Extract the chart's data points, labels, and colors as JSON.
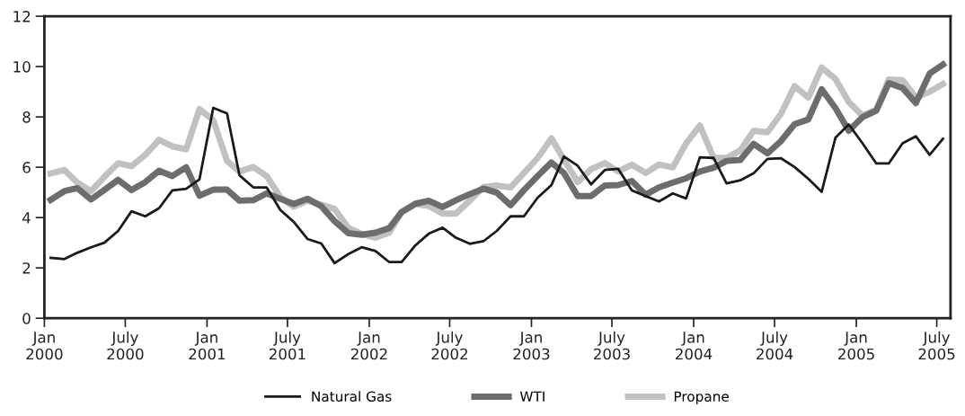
{
  "chart_data": {
    "type": "line",
    "x": [
      "2000-01-15",
      "2000-02-15",
      "2000-03-15",
      "2000-04-15",
      "2000-05-15",
      "2000-06-15",
      "2000-07-15",
      "2000-08-15",
      "2000-09-15",
      "2000-10-15",
      "2000-11-15",
      "2000-12-15",
      "2001-01-15",
      "2001-02-15",
      "2001-03-15",
      "2001-04-15",
      "2001-05-15",
      "2001-06-15",
      "2001-07-15",
      "2001-08-15",
      "2001-09-15",
      "2001-10-15",
      "2001-11-15",
      "2001-12-15",
      "2002-01-15",
      "2002-02-15",
      "2002-03-15",
      "2002-04-15",
      "2002-05-15",
      "2002-06-15",
      "2002-07-15",
      "2002-08-15",
      "2002-09-15",
      "2002-10-15",
      "2002-11-15",
      "2002-12-15",
      "2003-01-15",
      "2003-02-15",
      "2003-03-15",
      "2003-04-15",
      "2003-05-15",
      "2003-06-15",
      "2003-07-15",
      "2003-08-15",
      "2003-09-15",
      "2003-10-15",
      "2003-11-15",
      "2003-12-15",
      "2004-01-15",
      "2004-02-15",
      "2004-03-15",
      "2004-04-15",
      "2004-05-15",
      "2004-06-15",
      "2004-07-15",
      "2004-08-15",
      "2004-09-15",
      "2004-10-15",
      "2004-11-15",
      "2004-12-15",
      "2005-01-15",
      "2005-02-15",
      "2005-03-15",
      "2005-04-15",
      "2005-05-15",
      "2005-06-15",
      "2005-07-15"
    ],
    "series": [
      {
        "name": "Natural Gas",
        "color": "#1a1a1a",
        "values": [
          2.4,
          2.35,
          2.6,
          2.82,
          3.0,
          3.47,
          4.25,
          4.05,
          4.37,
          5.08,
          5.14,
          5.52,
          8.36,
          8.14,
          5.68,
          5.2,
          5.2,
          4.3,
          3.83,
          3.15,
          2.97,
          2.19,
          2.55,
          2.82,
          2.67,
          2.23,
          2.23,
          2.9,
          3.36,
          3.6,
          3.2,
          2.96,
          3.06,
          3.47,
          4.05,
          4.05,
          4.79,
          5.29,
          6.43,
          6.06,
          5.32,
          5.89,
          5.94,
          5.08,
          4.85,
          4.64,
          4.96,
          4.76,
          6.39,
          6.37,
          5.36,
          5.48,
          5.76,
          6.33,
          6.36,
          6.01,
          5.54,
          5.02,
          7.17,
          7.7,
          6.95,
          6.15,
          6.15,
          6.95,
          7.23,
          6.49,
          7.13
        ]
      },
      {
        "name": "WTI",
        "color": "#6d6d6f",
        "values": [
          4.7,
          5.05,
          5.17,
          4.72,
          5.1,
          5.5,
          5.09,
          5.41,
          5.86,
          5.65,
          6.0,
          4.87,
          5.11,
          5.11,
          4.67,
          4.69,
          4.96,
          4.75,
          4.54,
          4.75,
          4.45,
          3.86,
          3.38,
          3.32,
          3.4,
          3.58,
          4.22,
          4.55,
          4.67,
          4.42,
          4.69,
          4.93,
          5.15,
          4.99,
          4.49,
          5.09,
          5.65,
          6.19,
          5.77,
          4.85,
          4.85,
          5.27,
          5.29,
          5.45,
          4.91,
          5.2,
          5.39,
          5.56,
          5.83,
          5.98,
          6.25,
          6.29,
          6.93,
          6.55,
          7.03,
          7.71,
          7.9,
          9.1,
          8.35,
          7.45,
          7.99,
          8.25,
          9.34,
          9.15,
          8.55,
          9.72,
          10.08
        ]
      },
      {
        "name": "Propane",
        "color": "#c0c1c3",
        "values": [
          5.75,
          5.89,
          5.39,
          5.05,
          5.62,
          6.16,
          6.04,
          6.49,
          7.09,
          6.83,
          6.71,
          8.31,
          7.87,
          6.25,
          5.83,
          6.01,
          5.65,
          4.81,
          4.43,
          4.67,
          4.51,
          4.34,
          3.59,
          3.35,
          3.2,
          3.4,
          4.22,
          4.54,
          4.46,
          4.16,
          4.16,
          4.67,
          5.21,
          5.27,
          5.2,
          5.77,
          6.37,
          7.15,
          6.31,
          5.41,
          5.92,
          6.17,
          5.83,
          6.1,
          5.77,
          6.11,
          5.99,
          6.95,
          7.66,
          6.37,
          6.37,
          6.67,
          7.45,
          7.39,
          8.11,
          9.22,
          8.77,
          9.96,
          9.51,
          8.59,
          8.05,
          8.29,
          9.49,
          9.46,
          8.77,
          9.0,
          9.31
        ]
      }
    ],
    "xlim": [
      "2000-01-01",
      "2005-08-01"
    ],
    "xticks": [
      {
        "value": "2000-01-01",
        "label": "Jan\n2000"
      },
      {
        "value": "2000-07-01",
        "label": "July\n2000"
      },
      {
        "value": "2001-01-01",
        "label": "Jan\n2001"
      },
      {
        "value": "2001-07-01",
        "label": "July\n2001"
      },
      {
        "value": "2002-01-01",
        "label": "Jan\n2002"
      },
      {
        "value": "2002-07-01",
        "label": "July\n2002"
      },
      {
        "value": "2003-01-01",
        "label": "Jan\n2003"
      },
      {
        "value": "2003-07-01",
        "label": "July\n2003"
      },
      {
        "value": "2004-01-01",
        "label": "Jan\n2004"
      },
      {
        "value": "2004-07-01",
        "label": "July\n2004"
      },
      {
        "value": "2005-01-01",
        "label": "Jan\n2005"
      },
      {
        "value": "2005-07-01",
        "label": "July\n2005"
      }
    ],
    "ylim": [
      0,
      12
    ],
    "yticks": [
      0,
      2,
      4,
      6,
      8,
      10,
      12
    ],
    "grid": false,
    "legend": "bottom",
    "marker": "none",
    "line_style": "solid"
  }
}
